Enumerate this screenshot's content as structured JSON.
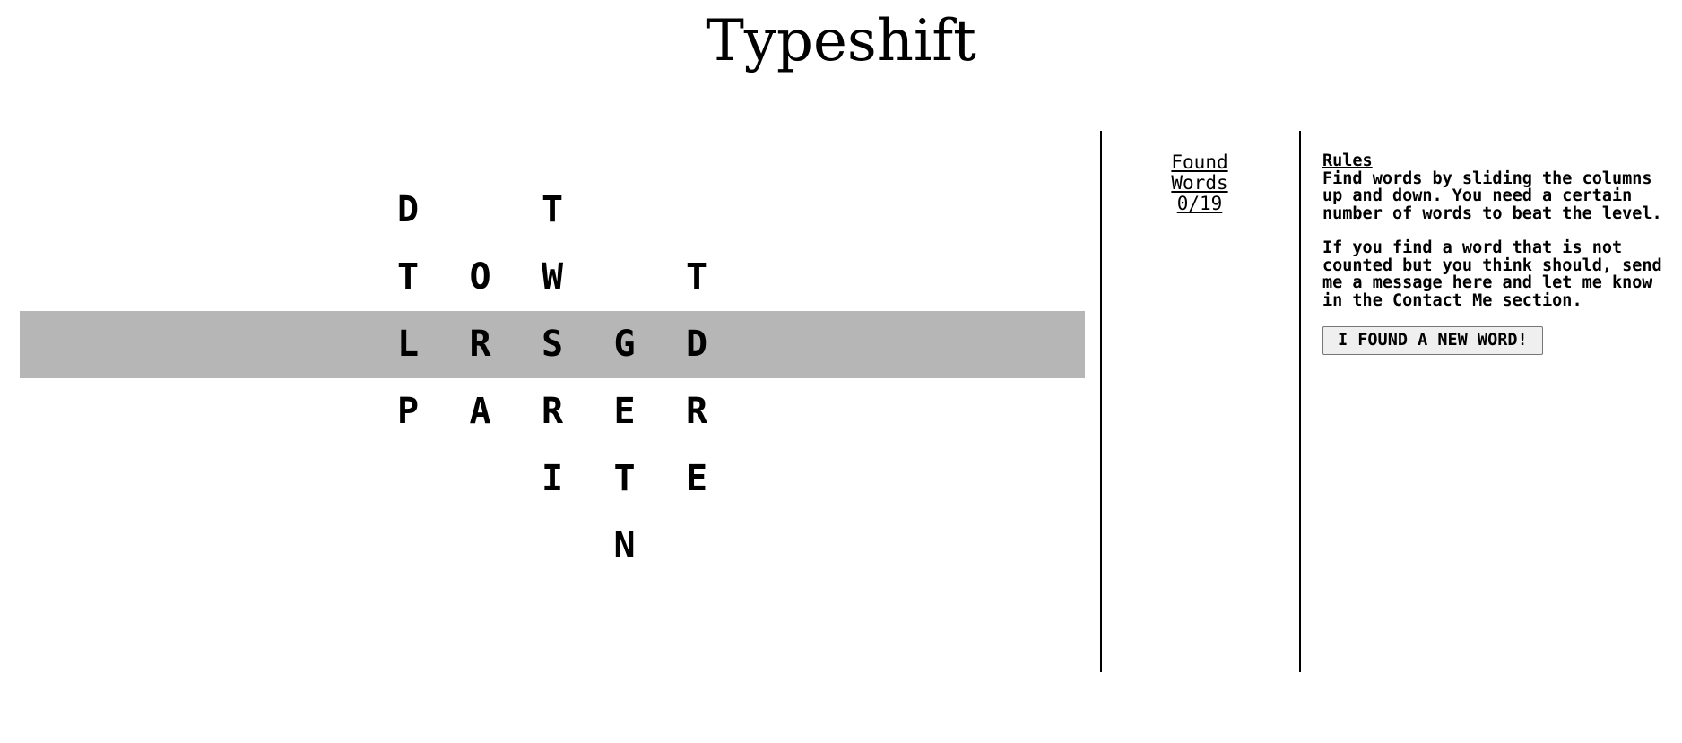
{
  "header": {
    "title": "Typeshift"
  },
  "board": {
    "selected_row": 2,
    "columns": [
      {
        "offset": 0,
        "letters": [
          "D",
          "T",
          "L",
          "P"
        ]
      },
      {
        "offset": 1,
        "letters": [
          "O",
          "R",
          "A"
        ]
      },
      {
        "offset": 0,
        "letters": [
          "T",
          "W",
          "S",
          "R",
          "I"
        ]
      },
      {
        "offset": 2,
        "letters": [
          "G",
          "E",
          "T",
          "N"
        ]
      },
      {
        "offset": 1,
        "letters": [
          "T",
          "D",
          "R",
          "E"
        ]
      }
    ]
  },
  "found": {
    "line1": "Found",
    "line2": "Words",
    "count": "0/19"
  },
  "rules": {
    "heading": "Rules",
    "paragraph1": "Find words by sliding the columns up and down. You need a certain number of words to beat the level.",
    "paragraph2": "If you find a word that is not counted but you think should, send me a message here and let me know in the Contact Me section.",
    "button_label": "I FOUND A NEW WORD!"
  }
}
